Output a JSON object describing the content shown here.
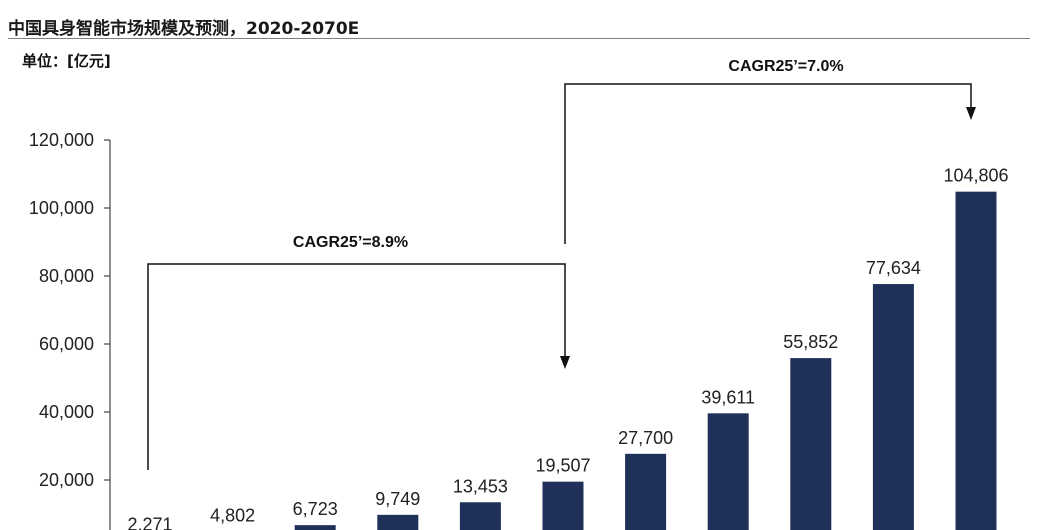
{
  "header": {
    "title": "中国具身智能市场规模及预测，2020-2070E",
    "unit": "单位：[亿元]"
  },
  "chart_data": {
    "type": "bar",
    "title": "中国具身智能市场规模及预测，2020-2070E",
    "ylabel": "单位：[亿元]",
    "ylim": [
      0,
      120000
    ],
    "yticks": [
      "20,000",
      "40,000",
      "60,000",
      "80,000",
      "100,000",
      "120,000"
    ],
    "ytick_values": [
      20000,
      40000,
      60000,
      80000,
      100000,
      120000
    ],
    "values": [
      2271,
      4802,
      6723,
      9749,
      13453,
      19507,
      27700,
      39611,
      55852,
      77634,
      104806
    ],
    "value_labels": [
      "2,271",
      "4,802",
      "6,723",
      "9,749",
      "13,453",
      "19,507",
      "27,700",
      "39,611",
      "55,852",
      "77,634",
      "104,806"
    ],
    "bar_color": "#1f3158",
    "annotations": [
      {
        "text": "CAGR25’=8.9%",
        "from_index": 0,
        "to_index": 5
      },
      {
        "text": "CAGR25’=7.0%",
        "from_index": 5,
        "to_index": 10
      }
    ],
    "grid": false
  }
}
